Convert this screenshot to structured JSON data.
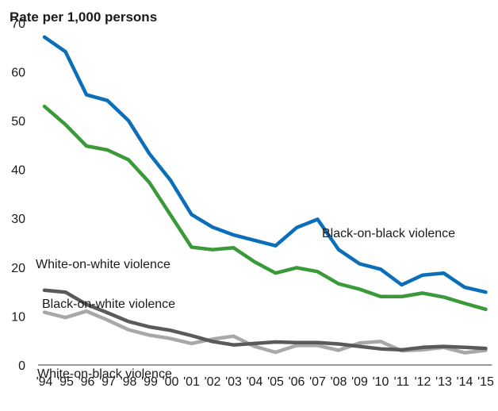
{
  "chart_data": {
    "type": "line",
    "ylabel": "Rate per 1,000 persons",
    "ylim": [
      0,
      70
    ],
    "yticks": [
      0,
      10,
      20,
      30,
      40,
      50,
      60,
      70
    ],
    "categories": [
      "'94",
      "'95",
      "'96",
      "'97",
      "'98",
      "'99",
      "'00",
      "'01",
      "'02",
      "'03",
      "'04",
      "'05",
      "'06",
      "'07",
      "'08",
      "'09",
      "'10",
      "'11",
      "'12",
      "'13",
      "'14",
      "'15"
    ],
    "series": [
      {
        "name": "Black-on-black violence",
        "color": "#0b6eb8",
        "values": [
          67.1,
          64.1,
          55.3,
          54.1,
          50.0,
          43.2,
          37.8,
          30.8,
          28.2,
          26.6,
          25.5,
          24.4,
          28.1,
          29.8,
          23.6,
          20.7,
          19.6,
          16.4,
          18.4,
          18.8,
          15.9,
          14.9
        ]
      },
      {
        "name": "White-on-white violence",
        "color": "#3a9a3a",
        "values": [
          52.9,
          49.2,
          44.8,
          44.0,
          42.0,
          37.3,
          30.7,
          24.1,
          23.6,
          24.0,
          21.1,
          18.8,
          19.9,
          19.1,
          16.6,
          15.5,
          14.0,
          14.0,
          14.7,
          13.9,
          12.6,
          11.4
        ]
      },
      {
        "name": "Black-on-white violence",
        "color": "#5a5a5c",
        "values": [
          15.3,
          14.9,
          12.4,
          10.7,
          8.9,
          7.8,
          7.1,
          6.0,
          4.8,
          4.1,
          4.4,
          4.7,
          4.6,
          4.6,
          4.3,
          3.8,
          3.3,
          3.1,
          3.6,
          3.8,
          3.6,
          3.4
        ]
      },
      {
        "name": "White-on-black violence",
        "color": "#a8a8aa",
        "values": [
          10.8,
          9.7,
          11.0,
          9.2,
          7.2,
          6.1,
          5.4,
          4.4,
          5.3,
          5.9,
          3.8,
          2.6,
          4.0,
          4.0,
          3.0,
          4.5,
          4.8,
          2.9,
          3.1,
          3.6,
          2.5,
          3.0
        ]
      }
    ],
    "annotations": [
      {
        "text": "Black-on-black violence",
        "series": 0
      },
      {
        "text": "White-on-white violence",
        "series": 1
      },
      {
        "text": "Black-on-white violence",
        "series": 2
      },
      {
        "text": "White-on-black violence",
        "series": 3
      }
    ],
    "grid": false,
    "legend": "inline labels"
  }
}
